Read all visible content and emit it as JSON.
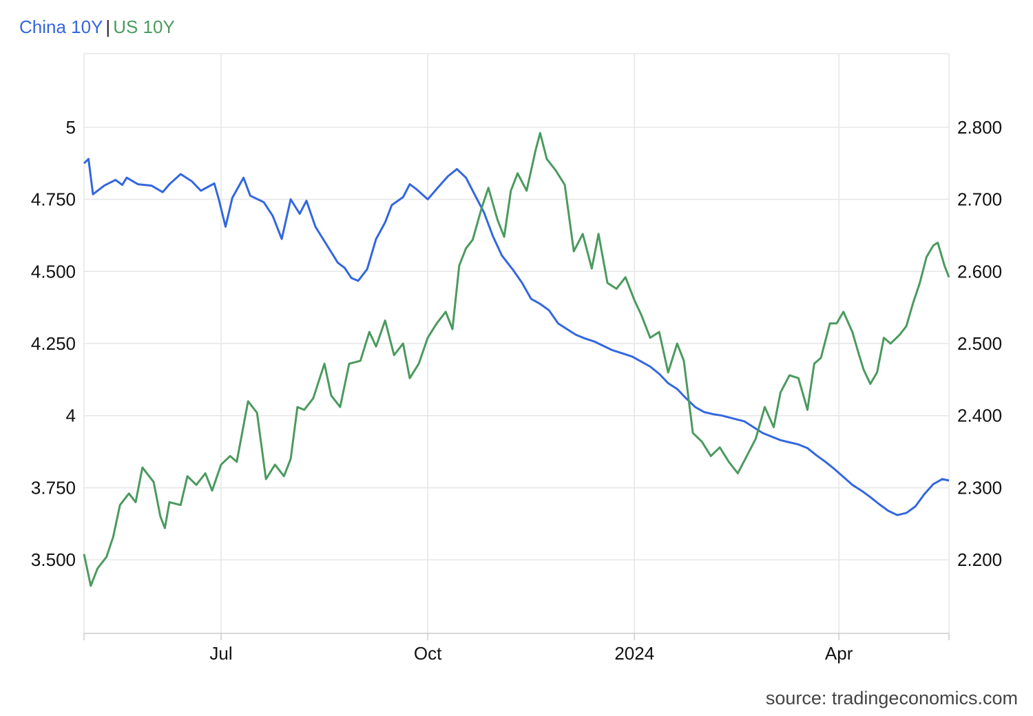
{
  "legend": {
    "series_a": "China 10Y",
    "separator": "|",
    "series_b": "US 10Y"
  },
  "source": "source: tradingeconomics.com",
  "colors": {
    "china": "#3366e0",
    "us": "#4a9a5e",
    "grid": "#e6e6e6",
    "axis": "#cccccc"
  },
  "chart_data": {
    "type": "line",
    "x_ticks": [
      "Jul",
      "Oct",
      "2024",
      "Apr"
    ],
    "x_range": [
      "2023-05-01",
      "2024-05-20"
    ],
    "left_axis": {
      "series": "US 10Y",
      "ticks": [
        "3.500",
        "3.750",
        "4",
        "4.250",
        "4.500",
        "4.750",
        "5"
      ],
      "tick_values": [
        3.5,
        3.75,
        4.0,
        4.25,
        4.5,
        4.75,
        5.0
      ],
      "range": [
        3.245,
        5.255
      ]
    },
    "right_axis": {
      "series": "China 10Y",
      "ticks": [
        "2.200",
        "2.300",
        "2.400",
        "2.500",
        "2.600",
        "2.700",
        "2.800"
      ],
      "tick_values": [
        2.2,
        2.3,
        2.4,
        2.5,
        2.6,
        2.7,
        2.8
      ],
      "range": [
        2.098,
        2.902
      ]
    },
    "grid": true,
    "series": [
      {
        "name": "China 10Y",
        "axis": "right",
        "points": [
          [
            "2023-05-01",
            2.75
          ],
          [
            "2023-05-03",
            2.756
          ],
          [
            "2023-05-05",
            2.707
          ],
          [
            "2023-05-10",
            2.719
          ],
          [
            "2023-05-15",
            2.727
          ],
          [
            "2023-05-18",
            2.72
          ],
          [
            "2023-05-20",
            2.73
          ],
          [
            "2023-05-25",
            2.721
          ],
          [
            "2023-05-31",
            2.719
          ],
          [
            "2023-06-05",
            2.71
          ],
          [
            "2023-06-08",
            2.721
          ],
          [
            "2023-06-13",
            2.735
          ],
          [
            "2023-06-18",
            2.725
          ],
          [
            "2023-06-22",
            2.712
          ],
          [
            "2023-06-28",
            2.722
          ],
          [
            "2023-06-30",
            2.7
          ],
          [
            "2023-07-03",
            2.662
          ],
          [
            "2023-07-06",
            2.702
          ],
          [
            "2023-07-11",
            2.73
          ],
          [
            "2023-07-14",
            2.705
          ],
          [
            "2023-07-20",
            2.696
          ],
          [
            "2023-07-24",
            2.677
          ],
          [
            "2023-07-28",
            2.645
          ],
          [
            "2023-08-01",
            2.7
          ],
          [
            "2023-08-05",
            2.68
          ],
          [
            "2023-08-08",
            2.698
          ],
          [
            "2023-08-12",
            2.662
          ],
          [
            "2023-08-17",
            2.637
          ],
          [
            "2023-08-22",
            2.612
          ],
          [
            "2023-08-25",
            2.605
          ],
          [
            "2023-08-28",
            2.591
          ],
          [
            "2023-08-31",
            2.587
          ],
          [
            "2023-09-04",
            2.603
          ],
          [
            "2023-09-08",
            2.645
          ],
          [
            "2023-09-12",
            2.668
          ],
          [
            "2023-09-15",
            2.692
          ],
          [
            "2023-09-20",
            2.703
          ],
          [
            "2023-09-23",
            2.721
          ],
          [
            "2023-09-26",
            2.714
          ],
          [
            "2023-10-01",
            2.7
          ],
          [
            "2023-10-06",
            2.718
          ],
          [
            "2023-10-10",
            2.732
          ],
          [
            "2023-10-14",
            2.742
          ],
          [
            "2023-10-18",
            2.73
          ],
          [
            "2023-10-22",
            2.706
          ],
          [
            "2023-10-26",
            2.682
          ],
          [
            "2023-10-30",
            2.649
          ],
          [
            "2023-11-03",
            2.622
          ],
          [
            "2023-11-08",
            2.602
          ],
          [
            "2023-11-12",
            2.584
          ],
          [
            "2023-11-16",
            2.562
          ],
          [
            "2023-11-20",
            2.555
          ],
          [
            "2023-11-24",
            2.546
          ],
          [
            "2023-11-28",
            2.528
          ],
          [
            "2023-12-02",
            2.52
          ],
          [
            "2023-12-06",
            2.512
          ],
          [
            "2023-12-10",
            2.507
          ],
          [
            "2023-12-14",
            2.503
          ],
          [
            "2023-12-18",
            2.497
          ],
          [
            "2023-12-22",
            2.491
          ],
          [
            "2023-12-26",
            2.487
          ],
          [
            "2023-12-31",
            2.482
          ],
          [
            "2024-01-04",
            2.475
          ],
          [
            "2024-01-08",
            2.468
          ],
          [
            "2024-01-12",
            2.458
          ],
          [
            "2024-01-16",
            2.445
          ],
          [
            "2024-01-20",
            2.437
          ],
          [
            "2024-01-24",
            2.424
          ],
          [
            "2024-01-28",
            2.412
          ],
          [
            "2024-02-01",
            2.405
          ],
          [
            "2024-02-05",
            2.402
          ],
          [
            "2024-02-09",
            2.4
          ],
          [
            "2024-02-14",
            2.396
          ],
          [
            "2024-02-19",
            2.392
          ],
          [
            "2024-02-23",
            2.384
          ],
          [
            "2024-02-27",
            2.376
          ],
          [
            "2024-03-02",
            2.371
          ],
          [
            "2024-03-06",
            2.366
          ],
          [
            "2024-03-10",
            2.363
          ],
          [
            "2024-03-14",
            2.36
          ],
          [
            "2024-03-18",
            2.355
          ],
          [
            "2024-03-22",
            2.345
          ],
          [
            "2024-03-26",
            2.336
          ],
          [
            "2024-03-30",
            2.326
          ],
          [
            "2024-04-03",
            2.315
          ],
          [
            "2024-04-07",
            2.304
          ],
          [
            "2024-04-11",
            2.296
          ],
          [
            "2024-04-15",
            2.287
          ],
          [
            "2024-04-19",
            2.277
          ],
          [
            "2024-04-23",
            2.268
          ],
          [
            "2024-04-27",
            2.262
          ],
          [
            "2024-05-01",
            2.265
          ],
          [
            "2024-05-05",
            2.274
          ],
          [
            "2024-05-09",
            2.291
          ],
          [
            "2024-05-13",
            2.305
          ],
          [
            "2024-05-17",
            2.312
          ],
          [
            "2024-05-20",
            2.31
          ]
        ]
      },
      {
        "name": "US 10Y",
        "axis": "left",
        "points": [
          [
            "2023-05-01",
            3.52
          ],
          [
            "2023-05-04",
            3.41
          ],
          [
            "2023-05-07",
            3.47
          ],
          [
            "2023-05-11",
            3.51
          ],
          [
            "2023-05-14",
            3.58
          ],
          [
            "2023-05-17",
            3.69
          ],
          [
            "2023-05-21",
            3.73
          ],
          [
            "2023-05-24",
            3.7
          ],
          [
            "2023-05-27",
            3.82
          ],
          [
            "2023-06-01",
            3.77
          ],
          [
            "2023-06-04",
            3.65
          ],
          [
            "2023-06-06",
            3.61
          ],
          [
            "2023-06-08",
            3.7
          ],
          [
            "2023-06-13",
            3.69
          ],
          [
            "2023-06-16",
            3.79
          ],
          [
            "2023-06-20",
            3.76
          ],
          [
            "2023-06-24",
            3.8
          ],
          [
            "2023-06-27",
            3.74
          ],
          [
            "2023-07-01",
            3.83
          ],
          [
            "2023-07-05",
            3.86
          ],
          [
            "2023-07-08",
            3.84
          ],
          [
            "2023-07-13",
            4.05
          ],
          [
            "2023-07-17",
            4.01
          ],
          [
            "2023-07-21",
            3.78
          ],
          [
            "2023-07-25",
            3.83
          ],
          [
            "2023-07-29",
            3.79
          ],
          [
            "2023-08-01",
            3.85
          ],
          [
            "2023-08-04",
            4.03
          ],
          [
            "2023-08-07",
            4.02
          ],
          [
            "2023-08-11",
            4.06
          ],
          [
            "2023-08-16",
            4.18
          ],
          [
            "2023-08-19",
            4.07
          ],
          [
            "2023-08-23",
            4.03
          ],
          [
            "2023-08-27",
            4.18
          ],
          [
            "2023-09-01",
            4.19
          ],
          [
            "2023-09-05",
            4.29
          ],
          [
            "2023-09-08",
            4.24
          ],
          [
            "2023-09-12",
            4.33
          ],
          [
            "2023-09-16",
            4.21
          ],
          [
            "2023-09-20",
            4.25
          ],
          [
            "2023-09-23",
            4.13
          ],
          [
            "2023-09-27",
            4.18
          ],
          [
            "2023-10-01",
            4.27
          ],
          [
            "2023-10-05",
            4.32
          ],
          [
            "2023-10-09",
            4.36
          ],
          [
            "2023-10-12",
            4.3
          ],
          [
            "2023-10-15",
            4.52
          ],
          [
            "2023-10-18",
            4.58
          ],
          [
            "2023-10-21",
            4.61
          ],
          [
            "2023-10-25",
            4.72
          ],
          [
            "2023-10-28",
            4.79
          ],
          [
            "2023-11-01",
            4.68
          ],
          [
            "2023-11-04",
            4.62
          ],
          [
            "2023-11-07",
            4.78
          ],
          [
            "2023-11-10",
            4.84
          ],
          [
            "2023-11-14",
            4.78
          ],
          [
            "2023-11-18",
            4.92
          ],
          [
            "2023-11-20",
            4.98
          ],
          [
            "2023-11-23",
            4.89
          ],
          [
            "2023-11-27",
            4.85
          ],
          [
            "2023-12-01",
            4.8
          ],
          [
            "2023-12-05",
            4.57
          ],
          [
            "2023-12-09",
            4.63
          ],
          [
            "2023-12-13",
            4.51
          ],
          [
            "2023-12-16",
            4.63
          ],
          [
            "2023-12-20",
            4.46
          ],
          [
            "2023-12-24",
            4.44
          ],
          [
            "2023-12-28",
            4.48
          ],
          [
            "2024-01-01",
            4.4
          ],
          [
            "2024-01-04",
            4.35
          ],
          [
            "2024-01-08",
            4.27
          ],
          [
            "2024-01-12",
            4.29
          ],
          [
            "2024-01-16",
            4.15
          ],
          [
            "2024-01-20",
            4.25
          ],
          [
            "2024-01-23",
            4.19
          ],
          [
            "2024-01-27",
            3.94
          ],
          [
            "2024-01-31",
            3.91
          ],
          [
            "2024-02-04",
            3.86
          ],
          [
            "2024-02-08",
            3.89
          ],
          [
            "2024-02-12",
            3.84
          ],
          [
            "2024-02-16",
            3.8
          ],
          [
            "2024-02-20",
            3.86
          ],
          [
            "2024-02-24",
            3.92
          ],
          [
            "2024-02-28",
            4.03
          ],
          [
            "2024-03-03",
            3.96
          ],
          [
            "2024-03-06",
            4.08
          ],
          [
            "2024-03-10",
            4.14
          ],
          [
            "2024-03-14",
            4.13
          ],
          [
            "2024-03-18",
            4.02
          ],
          [
            "2024-03-21",
            4.18
          ],
          [
            "2024-03-24",
            4.2
          ],
          [
            "2024-03-28",
            4.32
          ],
          [
            "2024-03-31",
            4.32
          ],
          [
            "2024-04-03",
            4.36
          ],
          [
            "2024-04-07",
            4.29
          ],
          [
            "2024-04-10",
            4.21
          ],
          [
            "2024-04-12",
            4.16
          ],
          [
            "2024-04-15",
            4.11
          ],
          [
            "2024-04-18",
            4.15
          ],
          [
            "2024-04-21",
            4.27
          ],
          [
            "2024-04-24",
            4.25
          ],
          [
            "2024-04-28",
            4.28
          ],
          [
            "2024-05-01",
            4.31
          ],
          [
            "2024-05-04",
            4.39
          ],
          [
            "2024-05-07",
            4.46
          ],
          [
            "2024-05-10",
            4.55
          ],
          [
            "2024-05-13",
            4.59
          ],
          [
            "2024-05-15",
            4.6
          ],
          [
            "2024-05-18",
            4.52
          ],
          [
            "2024-05-20",
            4.48
          ]
        ]
      }
    ]
  }
}
